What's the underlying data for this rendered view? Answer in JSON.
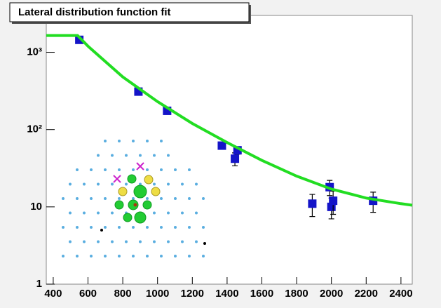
{
  "chart_data": {
    "type": "scatter",
    "title": "Lateral distribution function fit",
    "xlim": [
      360,
      2465
    ],
    "ylim": [
      1,
      3000
    ],
    "log_y": true,
    "xticks": [
      400,
      600,
      800,
      1000,
      1200,
      1400,
      1600,
      1800,
      2000,
      2200,
      2400
    ],
    "yticks": [
      1,
      10,
      {
        "value": 100,
        "label": "10²"
      },
      {
        "value": 1000,
        "label": "10³"
      }
    ],
    "series": [
      {
        "color": "#1414c8",
        "x": [
          550,
          890,
          1055,
          1370,
          1445,
          1460,
          1890,
          1990,
          2000,
          2010,
          2240
        ],
        "values": [
          1450,
          310,
          175,
          62,
          42,
          54,
          11,
          18,
          10,
          12,
          12
        ],
        "errors": [
          80,
          20,
          10,
          4,
          8,
          6,
          3.5,
          4,
          3,
          4,
          3.5
        ]
      },
      {
        "type": "line",
        "color": "#22dd22",
        "x": [
          360,
          540,
          600,
          800,
          1000,
          1200,
          1400,
          1600,
          1800,
          2000,
          2200,
          2400,
          2465
        ],
        "values": [
          1650,
          1650,
          1200,
          480,
          230,
          120,
          68,
          40,
          25,
          17,
          13,
          11,
          10.5
        ]
      }
    ]
  }
}
